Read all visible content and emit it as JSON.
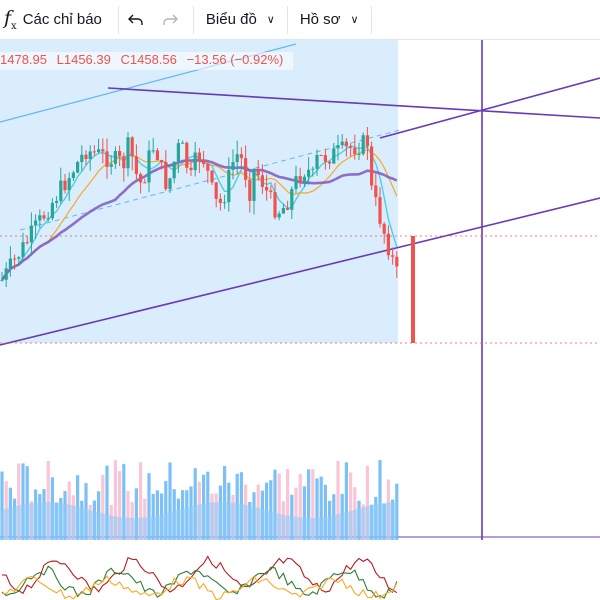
{
  "toolbar": {
    "indicators_label": "Các chỉ báo",
    "undo_icon": "undo-icon",
    "redo_icon": "redo-icon",
    "chart_label": "Biểu đồ",
    "profile_label": "Hồ sơ",
    "fx_icon": "function-icon"
  },
  "legend": {
    "high": "1478.95",
    "low": "L1456.39",
    "close": "C1458.56",
    "change": "−13.56 (−0.92%)"
  },
  "colors": {
    "up": "#26a69a",
    "down": "#ef5350",
    "drawing": "#673ab7",
    "channel_fill": "#bbdefb",
    "volume_base": "#90caf9",
    "ema_fast": "#4dd0e1",
    "ema_mid": "#f9a825",
    "ma_slow": "#7e57c2"
  },
  "chart_data": {
    "type": "candlestick",
    "price_last": 1458.56,
    "price_range_approx": [
      1430,
      1510
    ],
    "candles_count_approx": 95,
    "indicators": [
      "EMA fast",
      "EMA mid",
      "MA slow",
      "Volume MA",
      "Oscillator"
    ],
    "grid": false
  }
}
